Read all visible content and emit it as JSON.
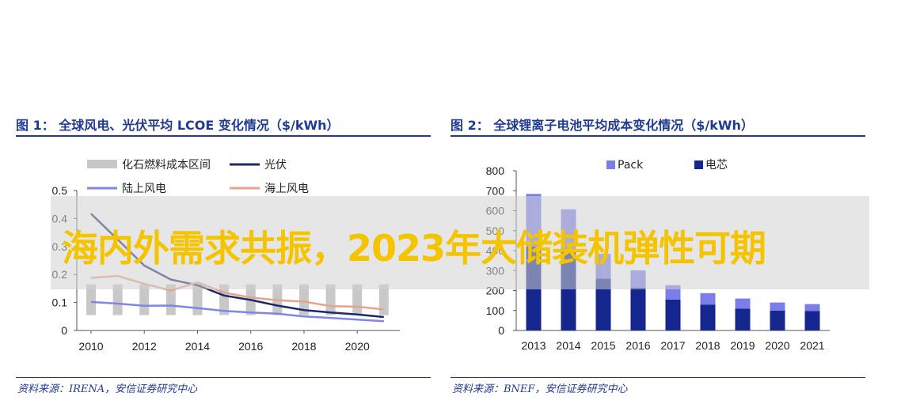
{
  "panel1": {
    "title": "图 1： 全球风电、光伏平均 LCOE 变化情况（$/kWh）",
    "source": "资料来源：IRENA，安信证券研究中心"
  },
  "panel2": {
    "title": "图 2： 全球锂离子电池平均成本变化情况（$/kWh）",
    "source": "资料来源：BNEF，安信证券研究中心"
  },
  "banner": {
    "text": "海内外需求共振，2023年大储装机弹性可期"
  },
  "colors": {
    "title_blue": "#1f3a93",
    "fossil_gray": "#c8c8c8",
    "pv_navy": "#1a2a6e",
    "onshore_blue": "#7e86e8",
    "offshore_orange": "#e8a28a",
    "pack_purple": "#7b7ee8",
    "cell_navy": "#15278f",
    "banner_yellow": "#f5c400"
  },
  "chart_data": [
    {
      "type": "line",
      "title": "",
      "xlabel": "",
      "ylabel": "",
      "xlim": [
        2010,
        2021
      ],
      "ylim": [
        0,
        0.5
      ],
      "xticks": [
        "2010",
        "2012",
        "2014",
        "2016",
        "2018",
        "2020"
      ],
      "yticks": [
        "0",
        "0.1",
        "0.2",
        "0.3",
        "0.4",
        "0.5"
      ],
      "legend_placement": "top",
      "fossil_range": {
        "name": "化石燃料成本区间",
        "x": [
          2010,
          2011,
          2012,
          2013,
          2014,
          2015,
          2016,
          2017,
          2018,
          2019,
          2020,
          2021
        ],
        "low": [
          0.055,
          0.055,
          0.055,
          0.055,
          0.055,
          0.055,
          0.055,
          0.055,
          0.055,
          0.055,
          0.055,
          0.055
        ],
        "high": [
          0.165,
          0.165,
          0.165,
          0.165,
          0.165,
          0.165,
          0.165,
          0.165,
          0.165,
          0.165,
          0.165,
          0.165
        ]
      },
      "series": [
        {
          "name": "光伏",
          "x": [
            2010,
            2011,
            2012,
            2013,
            2014,
            2015,
            2016,
            2017,
            2018,
            2019,
            2020,
            2021
          ],
          "values": [
            0.417,
            0.325,
            0.232,
            0.182,
            0.162,
            0.125,
            0.109,
            0.089,
            0.073,
            0.064,
            0.057,
            0.048
          ]
        },
        {
          "name": "陆上风电",
          "x": [
            2010,
            2011,
            2012,
            2013,
            2014,
            2015,
            2016,
            2017,
            2018,
            2019,
            2020,
            2021
          ],
          "values": [
            0.102,
            0.096,
            0.088,
            0.089,
            0.08,
            0.07,
            0.064,
            0.06,
            0.05,
            0.045,
            0.039,
            0.033
          ]
        },
        {
          "name": "海上风电",
          "x": [
            2010,
            2011,
            2012,
            2013,
            2014,
            2015,
            2016,
            2017,
            2018,
            2019,
            2020,
            2021
          ],
          "values": [
            0.188,
            0.195,
            0.167,
            0.143,
            0.172,
            0.135,
            0.118,
            0.108,
            0.103,
            0.087,
            0.085,
            0.075
          ]
        }
      ]
    },
    {
      "type": "bar",
      "stacked": true,
      "title": "",
      "xlabel": "",
      "ylabel": "",
      "ylim": [
        0,
        800
      ],
      "yticks": [
        "0",
        "100",
        "200",
        "300",
        "400",
        "500",
        "600",
        "700",
        "800"
      ],
      "legend_placement": "top",
      "categories": [
        "2013",
        "2014",
        "2015",
        "2016",
        "2017",
        "2018",
        "2019",
        "2020",
        "2021"
      ],
      "totals": [
        684,
        607,
        384,
        301,
        227,
        187,
        160,
        140,
        132
      ],
      "series": [
        {
          "name": "电芯",
          "values": [
            420,
            400,
            260,
            215,
            155,
            130,
            110,
            100,
            97
          ]
        },
        {
          "name": "Pack",
          "values": [
            264,
            207,
            124,
            86,
            72,
            57,
            50,
            40,
            35
          ]
        }
      ]
    }
  ]
}
